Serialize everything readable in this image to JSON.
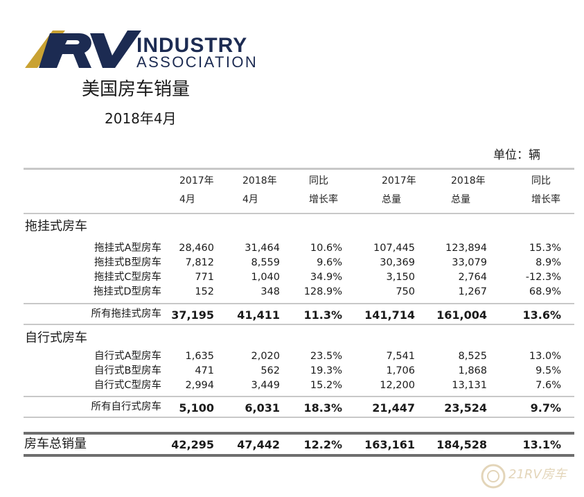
{
  "logo": {
    "letters": "RV",
    "line1": "INDUSTRY",
    "line2": "ASSOCIATION"
  },
  "title": "美国房车销量",
  "subtitle": "2018年4月",
  "unit": "单位：辆",
  "headers": [
    {
      "line1": "2017年",
      "line2": "4月"
    },
    {
      "line1": "2018年",
      "line2": "4月"
    },
    {
      "line1": "同比",
      "line2": "增长率"
    },
    {
      "line1": "2017年",
      "line2": "总量"
    },
    {
      "line1": "2018年",
      "line2": "总量"
    },
    {
      "line1": "同比",
      "line2": "增长率"
    }
  ],
  "sections": [
    {
      "title": "拖挂式房车",
      "rows": [
        {
          "label": "拖挂式A型房车",
          "values": [
            "28,460",
            "31,464",
            "10.6%",
            "107,445",
            "123,894",
            "15.3%"
          ]
        },
        {
          "label": "拖挂式B型房车",
          "values": [
            "7,812",
            "8,559",
            "9.6%",
            "30,369",
            "33,079",
            "8.9%"
          ]
        },
        {
          "label": "拖挂式C型房车",
          "values": [
            "771",
            "1,040",
            "34.9%",
            "3,150",
            "2,764",
            "-12.3%"
          ]
        },
        {
          "label": "拖挂式D型房车",
          "values": [
            "152",
            "348",
            "128.9%",
            "750",
            "1,267",
            "68.9%"
          ]
        }
      ],
      "subtotal": {
        "label": "所有拖挂式房车",
        "values": [
          "37,195",
          "41,411",
          "11.3%",
          "141,714",
          "161,004",
          "13.6%"
        ]
      }
    },
    {
      "title": "自行式房车",
      "rows": [
        {
          "label": "自行式A型房车",
          "values": [
            "1,635",
            "2,020",
            "23.5%",
            "7,541",
            "8,525",
            "13.0%"
          ]
        },
        {
          "label": "自行式B型房车",
          "values": [
            "471",
            "562",
            "19.3%",
            "1,706",
            "1,868",
            "9.5%"
          ]
        },
        {
          "label": "自行式C型房车",
          "values": [
            "2,994",
            "3,449",
            "15.2%",
            "12,200",
            "13,131",
            "7.6%"
          ]
        }
      ],
      "subtotal": {
        "label": "所有自行式房车",
        "values": [
          "5,100",
          "6,031",
          "18.3%",
          "21,447",
          "23,524",
          "9.7%"
        ]
      }
    }
  ],
  "grand_total": {
    "label": "房车总销量",
    "values": [
      "42,295",
      "47,442",
      "12.2%",
      "163,161",
      "184,528",
      "13.1%"
    ]
  },
  "watermark": "21RV房车",
  "colors": {
    "brand_navy": "#1c2b52",
    "brand_gold": "#c9a233",
    "rule_gray": "#c8c8c8",
    "rule_dark": "#6e6e6e"
  }
}
